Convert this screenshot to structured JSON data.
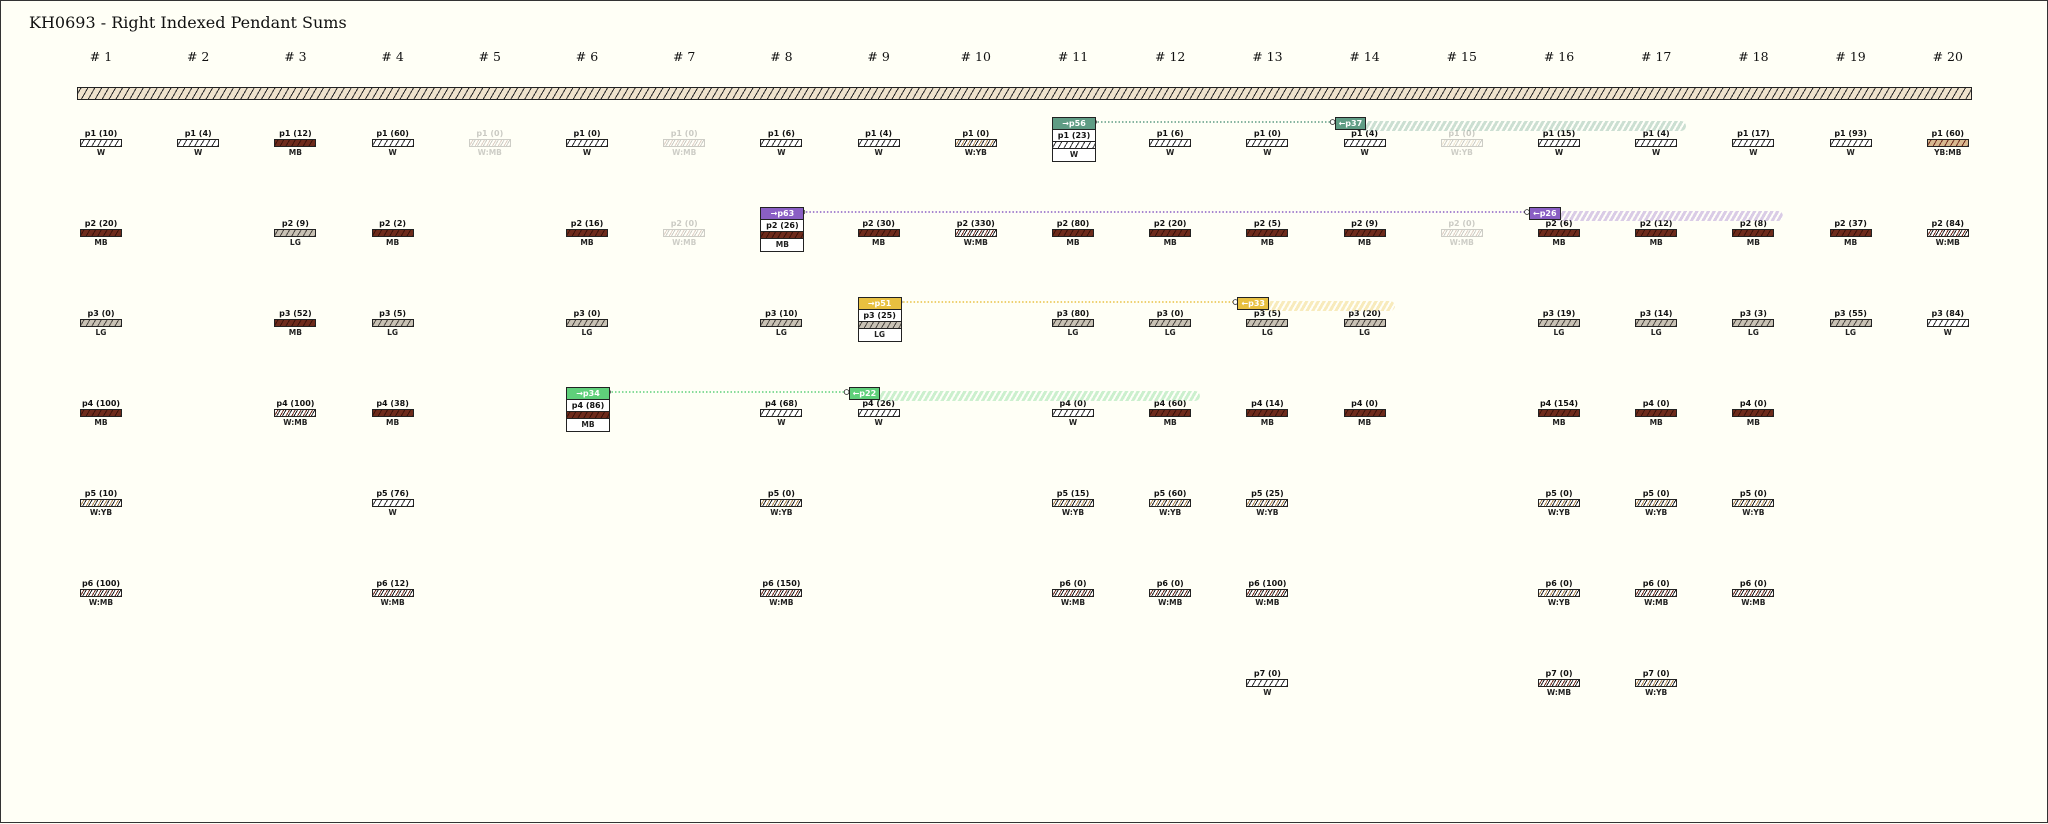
{
  "title": "KH0693 - Right Indexed Pendant Sums",
  "columns": [
    "# 1",
    "# 2",
    "# 3",
    "# 4",
    "# 5",
    "# 6",
    "# 7",
    "# 8",
    "# 9",
    "# 10",
    "# 11",
    "# 12",
    "# 13",
    "# 14",
    "# 15",
    "# 16",
    "# 17",
    "# 18",
    "# 19",
    "# 20"
  ],
  "pendants": [
    {
      "col": 1,
      "row": 1,
      "label": "p1 (10)",
      "color": "W"
    },
    {
      "col": 2,
      "row": 1,
      "label": "p1 (4)",
      "color": "W"
    },
    {
      "col": 3,
      "row": 1,
      "label": "p1 (12)",
      "color": "MB"
    },
    {
      "col": 4,
      "row": 1,
      "label": "p1 (60)",
      "color": "W"
    },
    {
      "col": 5,
      "row": 1,
      "label": "p1 (0)",
      "color": "W:MB",
      "ghost": true
    },
    {
      "col": 6,
      "row": 1,
      "label": "p1 (0)",
      "color": "W"
    },
    {
      "col": 7,
      "row": 1,
      "label": "p1 (0)",
      "color": "W:MB",
      "ghost": true
    },
    {
      "col": 8,
      "row": 1,
      "label": "p1 (6)",
      "color": "W"
    },
    {
      "col": 9,
      "row": 1,
      "label": "p1 (4)",
      "color": "W"
    },
    {
      "col": 10,
      "row": 1,
      "label": "p1 (0)",
      "color": "W:YB"
    },
    {
      "col": 12,
      "row": 1,
      "label": "p1 (6)",
      "color": "W"
    },
    {
      "col": 13,
      "row": 1,
      "label": "p1 (0)",
      "color": "W"
    },
    {
      "col": 14,
      "row": 1,
      "label": "p1 (4)",
      "color": "W"
    },
    {
      "col": 15,
      "row": 1,
      "label": "p1 (0)",
      "color": "W:YB",
      "ghost": true
    },
    {
      "col": 16,
      "row": 1,
      "label": "p1 (15)",
      "color": "W"
    },
    {
      "col": 17,
      "row": 1,
      "label": "p1 (4)",
      "color": "W"
    },
    {
      "col": 18,
      "row": 1,
      "label": "p1 (17)",
      "color": "W"
    },
    {
      "col": 19,
      "row": 1,
      "label": "p1 (93)",
      "color": "W"
    },
    {
      "col": 20,
      "row": 1,
      "label": "p1 (60)",
      "color": "YB:MB"
    },
    {
      "col": 1,
      "row": 2,
      "label": "p2 (20)",
      "color": "MB"
    },
    {
      "col": 3,
      "row": 2,
      "label": "p2 (9)",
      "color": "LG"
    },
    {
      "col": 4,
      "row": 2,
      "label": "p2 (2)",
      "color": "MB"
    },
    {
      "col": 6,
      "row": 2,
      "label": "p2 (16)",
      "color": "MB"
    },
    {
      "col": 7,
      "row": 2,
      "label": "p2 (0)",
      "color": "W:MB",
      "ghost": true
    },
    {
      "col": 9,
      "row": 2,
      "label": "p2 (30)",
      "color": "MB"
    },
    {
      "col": 10,
      "row": 2,
      "label": "p2 (330)",
      "color": "W:MB"
    },
    {
      "col": 11,
      "row": 2,
      "label": "p2 (80)",
      "color": "MB"
    },
    {
      "col": 12,
      "row": 2,
      "label": "p2 (20)",
      "color": "MB"
    },
    {
      "col": 13,
      "row": 2,
      "label": "p2 (5)",
      "color": "MB"
    },
    {
      "col": 14,
      "row": 2,
      "label": "p2 (9)",
      "color": "MB"
    },
    {
      "col": 15,
      "row": 2,
      "label": "p2 (0)",
      "color": "W:MB",
      "ghost": true
    },
    {
      "col": 16,
      "row": 2,
      "label": "p2 (6)",
      "color": "MB"
    },
    {
      "col": 17,
      "row": 2,
      "label": "p2 (12)",
      "color": "MB"
    },
    {
      "col": 18,
      "row": 2,
      "label": "p2 (8)",
      "color": "MB"
    },
    {
      "col": 19,
      "row": 2,
      "label": "p2 (37)",
      "color": "MB"
    },
    {
      "col": 20,
      "row": 2,
      "label": "p2 (84)",
      "color": "W:MB"
    },
    {
      "col": 1,
      "row": 3,
      "label": "p3 (0)",
      "color": "LG"
    },
    {
      "col": 3,
      "row": 3,
      "label": "p3 (52)",
      "color": "MB"
    },
    {
      "col": 4,
      "row": 3,
      "label": "p3 (5)",
      "color": "LG"
    },
    {
      "col": 6,
      "row": 3,
      "label": "p3 (0)",
      "color": "LG"
    },
    {
      "col": 8,
      "row": 3,
      "label": "p3 (10)",
      "color": "LG"
    },
    {
      "col": 11,
      "row": 3,
      "label": "p3 (80)",
      "color": "LG"
    },
    {
      "col": 12,
      "row": 3,
      "label": "p3 (0)",
      "color": "LG"
    },
    {
      "col": 13,
      "row": 3,
      "label": "p3 (5)",
      "color": "LG"
    },
    {
      "col": 14,
      "row": 3,
      "label": "p3 (20)",
      "color": "LG"
    },
    {
      "col": 16,
      "row": 3,
      "label": "p3 (19)",
      "color": "LG"
    },
    {
      "col": 17,
      "row": 3,
      "label": "p3 (14)",
      "color": "LG"
    },
    {
      "col": 18,
      "row": 3,
      "label": "p3 (3)",
      "color": "LG"
    },
    {
      "col": 19,
      "row": 3,
      "label": "p3 (55)",
      "color": "LG"
    },
    {
      "col": 20,
      "row": 3,
      "label": "p3 (84)",
      "color": "W"
    },
    {
      "col": 1,
      "row": 4,
      "label": "p4 (100)",
      "color": "MB"
    },
    {
      "col": 3,
      "row": 4,
      "label": "p4 (100)",
      "color": "W:MB"
    },
    {
      "col": 4,
      "row": 4,
      "label": "p4 (38)",
      "color": "MB"
    },
    {
      "col": 8,
      "row": 4,
      "label": "p4 (68)",
      "color": "W"
    },
    {
      "col": 9,
      "row": 4,
      "label": "p4 (26)",
      "color": "W"
    },
    {
      "col": 11,
      "row": 4,
      "label": "p4 (0)",
      "color": "W"
    },
    {
      "col": 12,
      "row": 4,
      "label": "p4 (60)",
      "color": "MB"
    },
    {
      "col": 13,
      "row": 4,
      "label": "p4 (14)",
      "color": "MB"
    },
    {
      "col": 14,
      "row": 4,
      "label": "p4 (0)",
      "color": "MB"
    },
    {
      "col": 16,
      "row": 4,
      "label": "p4 (154)",
      "color": "MB"
    },
    {
      "col": 17,
      "row": 4,
      "label": "p4 (0)",
      "color": "MB"
    },
    {
      "col": 18,
      "row": 4,
      "label": "p4 (0)",
      "color": "MB"
    },
    {
      "col": 1,
      "row": 5,
      "label": "p5 (10)",
      "color": "W:YB"
    },
    {
      "col": 4,
      "row": 5,
      "label": "p5 (76)",
      "color": "W"
    },
    {
      "col": 8,
      "row": 5,
      "label": "p5 (0)",
      "color": "W:YB"
    },
    {
      "col": 11,
      "row": 5,
      "label": "p5 (15)",
      "color": "W:YB"
    },
    {
      "col": 12,
      "row": 5,
      "label": "p5 (60)",
      "color": "W:YB"
    },
    {
      "col": 13,
      "row": 5,
      "label": "p5 (25)",
      "color": "W:YB"
    },
    {
      "col": 16,
      "row": 5,
      "label": "p5 (0)",
      "color": "W:YB"
    },
    {
      "col": 17,
      "row": 5,
      "label": "p5 (0)",
      "color": "W:YB"
    },
    {
      "col": 18,
      "row": 5,
      "label": "p5 (0)",
      "color": "W:YB"
    },
    {
      "col": 1,
      "row": 6,
      "label": "p6 (100)",
      "color": "W:MB"
    },
    {
      "col": 4,
      "row": 6,
      "label": "p6 (12)",
      "color": "W:MB"
    },
    {
      "col": 8,
      "row": 6,
      "label": "p6 (150)",
      "color": "W:MB"
    },
    {
      "col": 11,
      "row": 6,
      "label": "p6 (0)",
      "color": "W:MB"
    },
    {
      "col": 12,
      "row": 6,
      "label": "p6 (0)",
      "color": "W:MB"
    },
    {
      "col": 13,
      "row": 6,
      "label": "p6 (100)",
      "color": "W:MB"
    },
    {
      "col": 16,
      "row": 6,
      "label": "p6 (0)",
      "color": "W:YB"
    },
    {
      "col": 17,
      "row": 6,
      "label": "p6 (0)",
      "color": "W:MB"
    },
    {
      "col": 18,
      "row": 6,
      "label": "p6 (0)",
      "color": "W:MB"
    },
    {
      "col": 13,
      "row": 7,
      "label": "p7 (0)",
      "color": "W"
    },
    {
      "col": 16,
      "row": 7,
      "label": "p7 (0)",
      "color": "W:MB"
    },
    {
      "col": 17,
      "row": 7,
      "label": "p7 (0)",
      "color": "W:YB"
    }
  ],
  "sum_links": [
    {
      "from_col": 11,
      "row": 1,
      "from_tag": "→p56",
      "source_label": "p1 (23)",
      "source_color": "W",
      "to_col": 14,
      "to_tag": "←p37",
      "span_to_col": 17,
      "accent": "#5f9c84"
    },
    {
      "from_col": 8,
      "row": 2,
      "from_tag": "→p63",
      "source_label": "p2 (26)",
      "source_color": "MB",
      "to_col": 16,
      "to_tag": "←p26",
      "span_to_col": 18,
      "accent": "#8a5fc4"
    },
    {
      "from_col": 9,
      "row": 3,
      "from_tag": "→p51",
      "source_label": "p3 (25)",
      "source_color": "LG",
      "to_col": 13,
      "to_tag": "←p33",
      "span_to_col": 14,
      "accent": "#e8c040"
    },
    {
      "from_col": 6,
      "row": 4,
      "from_tag": "→p34",
      "source_label": "p4 (86)",
      "source_color": "MB",
      "to_col": 9,
      "to_tag": "←p22",
      "span_to_col": 12,
      "accent": "#5fd07a"
    }
  ]
}
